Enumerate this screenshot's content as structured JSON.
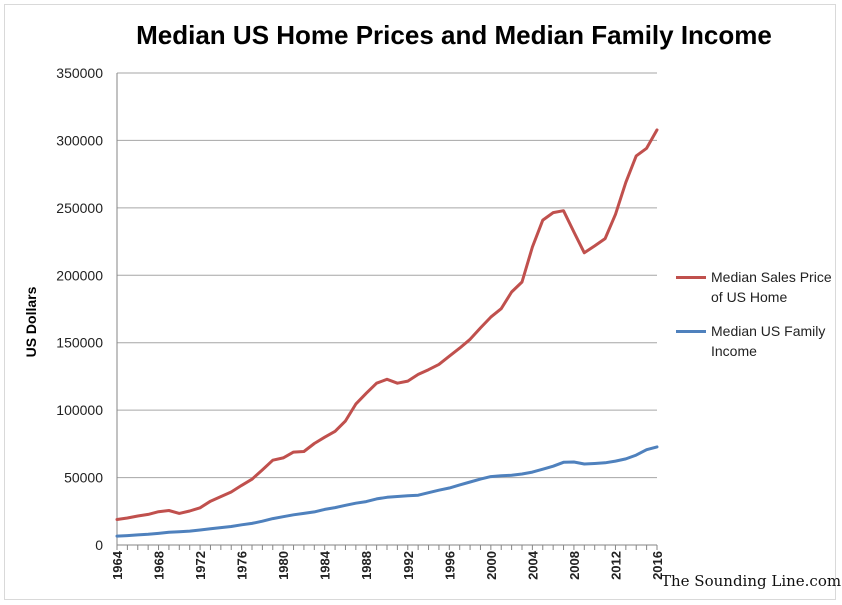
{
  "chart_data": {
    "type": "line",
    "title": "Median US Home Prices and Median Family Income",
    "xlabel": "",
    "ylabel": "US Dollars",
    "xlim": [
      1964,
      2016
    ],
    "ylim": [
      0,
      350000
    ],
    "y_ticks": [
      "0",
      "50000",
      "100000",
      "150000",
      "200000",
      "250000",
      "300000",
      "350000"
    ],
    "x_ticks": [
      "1964",
      "1968",
      "1972",
      "1976",
      "1980",
      "1984",
      "1988",
      "1992",
      "1996",
      "2000",
      "2004",
      "2008",
      "2012",
      "2016"
    ],
    "grid": true,
    "legend": "right",
    "x": [
      1964,
      1965,
      1966,
      1967,
      1968,
      1969,
      1970,
      1971,
      1972,
      1973,
      1974,
      1975,
      1976,
      1977,
      1978,
      1979,
      1980,
      1981,
      1982,
      1983,
      1984,
      1985,
      1986,
      1987,
      1988,
      1989,
      1990,
      1991,
      1992,
      1993,
      1994,
      1995,
      1996,
      1997,
      1998,
      1999,
      2000,
      2001,
      2002,
      2003,
      2004,
      2005,
      2006,
      2007,
      2008,
      2009,
      2010,
      2011,
      2012,
      2013,
      2014,
      2015,
      2016
    ],
    "series": [
      {
        "name": "Median Sales Price of US Home",
        "color": "#c0504d",
        "values": [
          18900,
          20000,
          21500,
          22700,
          24700,
          25600,
          23400,
          25200,
          27600,
          32500,
          35900,
          39300,
          44200,
          48800,
          55700,
          62900,
          64600,
          68900,
          69300,
          75300,
          79900,
          84300,
          92000,
          104500,
          112500,
          120000,
          122900,
          120000,
          121500,
          126500,
          130000,
          133900,
          140000,
          146000,
          152500,
          161000,
          169000,
          175200,
          187600,
          195000,
          221000,
          240900,
          246500,
          247900,
          232100,
          216700,
          221800,
          227200,
          245200,
          268900,
          288500,
          294200,
          307800
        ]
      },
      {
        "name": "Median US Family Income",
        "color": "#4f81bd",
        "values": [
          6570,
          6960,
          7500,
          7930,
          8630,
          9430,
          9870,
          10290,
          11120,
          12050,
          12900,
          13720,
          14960,
          16010,
          17640,
          19590,
          21020,
          22390,
          23430,
          24580,
          26430,
          27740,
          29460,
          30970,
          32190,
          34210,
          35350,
          35940,
          36570,
          36960,
          38780,
          40610,
          42300,
          44570,
          46740,
          48830,
          50730,
          51410,
          51680,
          52680,
          54060,
          56190,
          58410,
          61360,
          61520,
          60090,
          60400,
          60970,
          62240,
          63820,
          66630,
          70700,
          72710
        ]
      }
    ]
  },
  "credit": "The Sounding Line.com"
}
